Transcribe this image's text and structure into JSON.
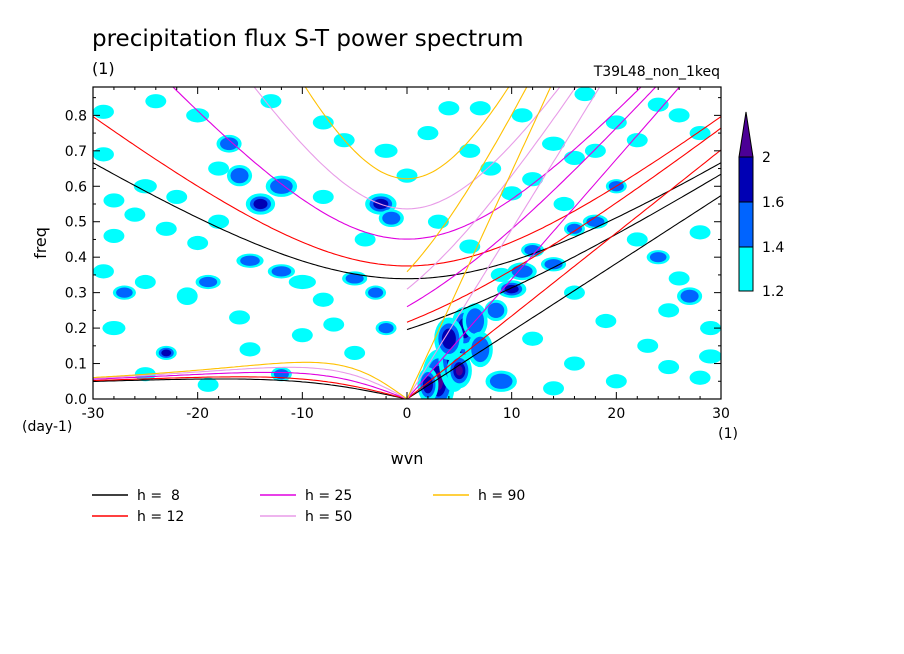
{
  "chart_data": {
    "type": "heatmap",
    "title": "precipitation flux S-T power spectrum",
    "subtitle_left": "(1)",
    "subtitle_right": "T39L48_non_1keq",
    "xlabel": "wvn",
    "ylabel": "freq",
    "x_unit": "(1)",
    "y_unit": "(day-1)",
    "xlim": [
      -30,
      30
    ],
    "ylim": [
      0,
      0.88
    ],
    "x_ticks": [
      -30,
      -20,
      -10,
      0,
      10,
      20,
      30
    ],
    "x_tick_labels": [
      "-30",
      "-20",
      "-10",
      "0",
      "10",
      "20",
      "30"
    ],
    "y_ticks": [
      0,
      0.1,
      0.2,
      0.3,
      0.4,
      0.5,
      0.6,
      0.7,
      0.8
    ],
    "y_tick_labels": [
      "0.0",
      "0.1",
      "0.2",
      "0.3",
      "0.4",
      "0.5",
      "0.6",
      "0.7",
      "0.8"
    ],
    "colorbar": {
      "levels": [
        1.2,
        1.4,
        1.6,
        2
      ],
      "level_labels": [
        "1.2",
        "1.4",
        "1.6",
        "2"
      ],
      "colors": [
        "#00ffff",
        "#0064ff",
        "#0000b4",
        "#4b0096"
      ]
    },
    "dispersion_curves": [
      {
        "name": "h =  8",
        "h": 8,
        "color": "#000000"
      },
      {
        "name": "h = 12",
        "h": 12,
        "color": "#ff0000"
      },
      {
        "name": "h = 25",
        "h": 25,
        "color": "#e000e0"
      },
      {
        "name": "h = 50",
        "h": 50,
        "color": "#e89ce8"
      },
      {
        "name": "h = 90",
        "h": 90,
        "color": "#ffc000"
      }
    ],
    "blobs": [
      [
        3,
        0.05,
        1.6,
        0.09,
        4
      ],
      [
        4.5,
        0.12,
        1.5,
        0.1,
        4
      ],
      [
        5.5,
        0.2,
        1.3,
        0.06,
        3
      ],
      [
        4,
        0.17,
        1.4,
        0.06,
        3
      ],
      [
        2,
        0.04,
        1,
        0.05,
        3
      ],
      [
        6.5,
        0.22,
        1.2,
        0.05,
        2
      ],
      [
        5,
        0.08,
        1.2,
        0.05,
        4
      ],
      [
        7,
        0.14,
        1.2,
        0.05,
        2
      ],
      [
        8.5,
        0.25,
        1.1,
        0.03,
        2
      ],
      [
        10,
        0.31,
        1.4,
        0.025,
        3
      ],
      [
        11,
        0.36,
        1.4,
        0.025,
        2
      ],
      [
        12,
        0.42,
        1.1,
        0.02,
        2
      ],
      [
        14,
        0.38,
        1.2,
        0.02,
        2
      ],
      [
        16,
        0.48,
        1,
        0.02,
        2
      ],
      [
        18,
        0.5,
        1.2,
        0.02,
        2
      ],
      [
        20,
        0.6,
        1,
        0.02,
        2
      ],
      [
        9,
        0.05,
        1.5,
        0.03,
        2
      ],
      [
        -2.5,
        0.55,
        1.5,
        0.03,
        3
      ],
      [
        -1.5,
        0.51,
        1.2,
        0.025,
        2
      ],
      [
        -12,
        0.6,
        1.5,
        0.03,
        2
      ],
      [
        -16,
        0.63,
        1.2,
        0.03,
        2
      ],
      [
        -14,
        0.55,
        1.4,
        0.03,
        3
      ],
      [
        -17,
        0.72,
        1.2,
        0.025,
        2
      ],
      [
        -18,
        0.65,
        1,
        0.02,
        1
      ],
      [
        -20,
        0.8,
        1.1,
        0.02,
        1
      ],
      [
        -23,
        0.13,
        1,
        0.02,
        3
      ],
      [
        -19,
        0.33,
        1.2,
        0.02,
        2
      ],
      [
        -21,
        0.29,
        1,
        0.025,
        1
      ],
      [
        -25,
        0.6,
        1.1,
        0.02,
        1
      ],
      [
        -26,
        0.52,
        1,
        0.02,
        1
      ],
      [
        -23,
        0.48,
        1,
        0.02,
        1
      ],
      [
        -28,
        0.46,
        1,
        0.02,
        1
      ],
      [
        -29,
        0.69,
        1,
        0.02,
        1
      ],
      [
        -27,
        0.3,
        1.1,
        0.02,
        2
      ],
      [
        -25,
        0.33,
        1,
        0.02,
        1
      ],
      [
        -15,
        0.39,
        1.3,
        0.02,
        2
      ],
      [
        -12,
        0.36,
        1.3,
        0.02,
        2
      ],
      [
        -10,
        0.33,
        1.3,
        0.02,
        1
      ],
      [
        -8,
        0.28,
        1,
        0.02,
        1
      ],
      [
        -5,
        0.34,
        1.2,
        0.02,
        2
      ],
      [
        -3,
        0.3,
        1,
        0.02,
        2
      ],
      [
        -7,
        0.21,
        1,
        0.02,
        1
      ],
      [
        -6,
        0.73,
        1,
        0.02,
        1
      ],
      [
        -8,
        0.78,
        1,
        0.02,
        1
      ],
      [
        -2,
        0.7,
        1.1,
        0.02,
        1
      ],
      [
        0,
        0.63,
        1,
        0.02,
        1
      ],
      [
        2,
        0.75,
        1,
        0.02,
        1
      ],
      [
        4,
        0.82,
        1,
        0.02,
        1
      ],
      [
        6,
        0.7,
        1,
        0.02,
        1
      ],
      [
        8,
        0.65,
        1,
        0.02,
        1
      ],
      [
        10,
        0.58,
        1,
        0.02,
        1
      ],
      [
        12,
        0.62,
        1,
        0.02,
        1
      ],
      [
        14,
        0.72,
        1.1,
        0.02,
        1
      ],
      [
        16,
        0.68,
        1,
        0.02,
        1
      ],
      [
        18,
        0.7,
        1,
        0.02,
        1
      ],
      [
        20,
        0.78,
        1,
        0.02,
        1
      ],
      [
        22,
        0.73,
        1,
        0.02,
        1
      ],
      [
        24,
        0.83,
        1,
        0.02,
        1
      ],
      [
        26,
        0.8,
        1,
        0.02,
        1
      ],
      [
        28,
        0.75,
        1,
        0.02,
        1
      ],
      [
        27,
        0.29,
        1.2,
        0.025,
        2
      ],
      [
        25,
        0.25,
        1,
        0.02,
        1
      ],
      [
        23,
        0.15,
        1,
        0.02,
        1
      ],
      [
        25,
        0.09,
        1,
        0.02,
        1
      ],
      [
        28,
        0.06,
        1,
        0.02,
        1
      ],
      [
        20,
        0.05,
        1,
        0.02,
        1
      ],
      [
        16,
        0.1,
        1,
        0.02,
        1
      ],
      [
        14,
        0.03,
        1,
        0.02,
        1
      ],
      [
        22,
        0.45,
        1,
        0.02,
        1
      ],
      [
        24,
        0.4,
        1.1,
        0.02,
        2
      ],
      [
        28,
        0.47,
        1,
        0.02,
        1
      ],
      [
        26,
        0.34,
        1,
        0.02,
        1
      ],
      [
        -2,
        0.2,
        1,
        0.02,
        2
      ],
      [
        -5,
        0.13,
        1,
        0.02,
        1
      ],
      [
        -12,
        0.07,
        1,
        0.02,
        2
      ],
      [
        -15,
        0.14,
        1,
        0.02,
        1
      ],
      [
        -19,
        0.04,
        1,
        0.02,
        1
      ],
      [
        -25,
        0.07,
        1,
        0.02,
        1
      ],
      [
        -28,
        0.2,
        1.1,
        0.02,
        1
      ],
      [
        -29,
        0.36,
        1,
        0.02,
        1
      ],
      [
        -28,
        0.56,
        1,
        0.02,
        1
      ],
      [
        -22,
        0.57,
        1,
        0.02,
        1
      ],
      [
        -20,
        0.44,
        1,
        0.02,
        1
      ],
      [
        -18,
        0.5,
        1,
        0.02,
        1
      ],
      [
        -16,
        0.23,
        1,
        0.02,
        1
      ],
      [
        -10,
        0.18,
        1,
        0.02,
        1
      ],
      [
        -8,
        0.57,
        1,
        0.02,
        1
      ],
      [
        -4,
        0.45,
        1,
        0.02,
        1
      ],
      [
        -13,
        0.84,
        1,
        0.02,
        1
      ],
      [
        -24,
        0.84,
        1,
        0.02,
        1
      ],
      [
        -29,
        0.81,
        1,
        0.02,
        1
      ],
      [
        3,
        0.5,
        1,
        0.02,
        1
      ],
      [
        6,
        0.43,
        1,
        0.02,
        1
      ],
      [
        9,
        0.35,
        1,
        0.02,
        1
      ],
      [
        16,
        0.3,
        1,
        0.02,
        1
      ],
      [
        19,
        0.22,
        1,
        0.02,
        1
      ],
      [
        12,
        0.17,
        1,
        0.02,
        1
      ],
      [
        15,
        0.55,
        1,
        0.02,
        1
      ],
      [
        7,
        0.82,
        1,
        0.02,
        1
      ],
      [
        11,
        0.8,
        1,
        0.02,
        1
      ],
      [
        17,
        0.86,
        1,
        0.02,
        1
      ],
      [
        29,
        0.12,
        1.1,
        0.02,
        1
      ],
      [
        29,
        0.2,
        1,
        0.02,
        1
      ]
    ]
  }
}
